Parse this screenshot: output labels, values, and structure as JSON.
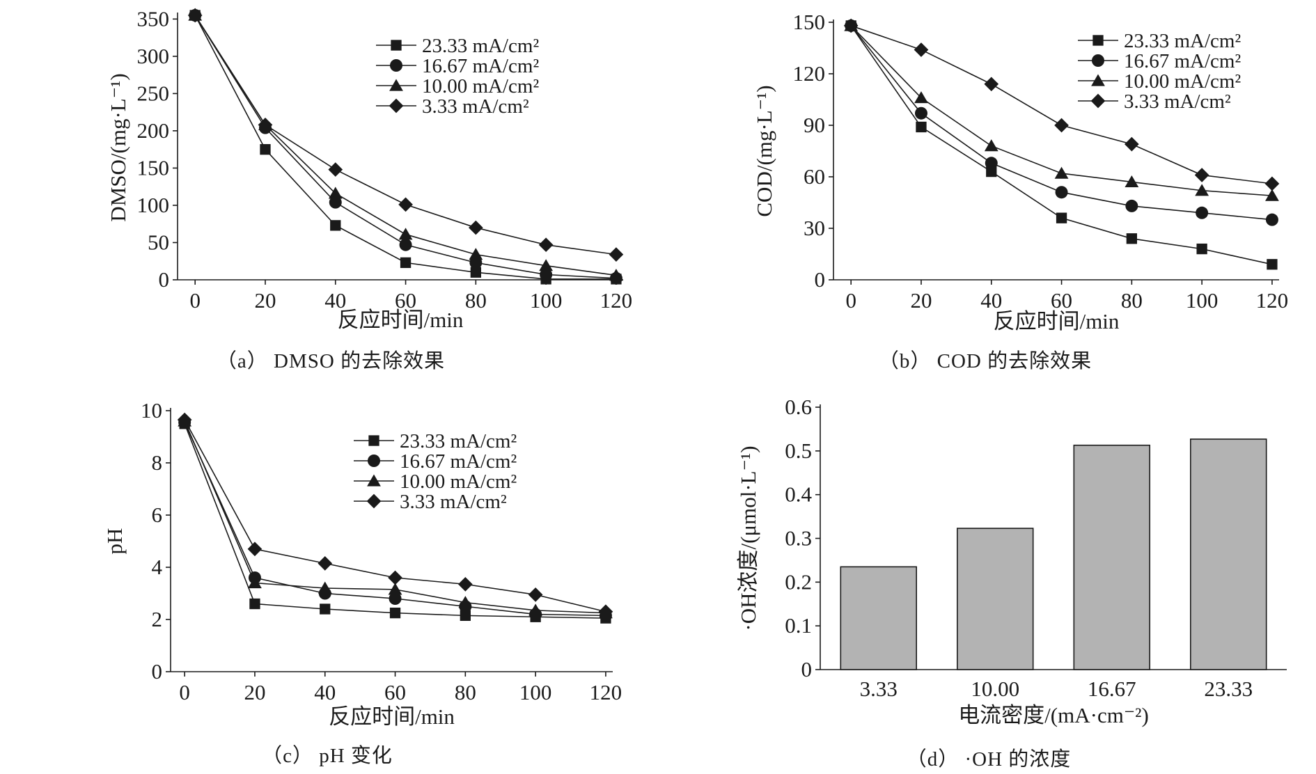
{
  "chart_data": [
    {
      "id": "a",
      "type": "line",
      "caption": "（a） DMSO 的去除效果",
      "xlabel": "反应时间/min",
      "ylabel": "DMSO/(mg·L⁻¹)",
      "x": [
        0,
        20,
        40,
        60,
        80,
        100,
        120
      ],
      "xticks": [
        "0",
        "20",
        "40",
        "60",
        "80",
        "100",
        "120"
      ],
      "yticks": [
        "0",
        "50",
        "100",
        "150",
        "200",
        "250",
        "300",
        "350"
      ],
      "xlim": [
        -5,
        122
      ],
      "ylim": [
        0,
        355
      ],
      "legend_position": "top-right",
      "series": [
        {
          "name": "23.33 mA/cm²",
          "marker": "square",
          "values": [
            355,
            175,
            73,
            23,
            10,
            1,
            1
          ]
        },
        {
          "name": "16.67 mA/cm²",
          "marker": "circle",
          "values": [
            355,
            204,
            104,
            47,
            23,
            7,
            2
          ]
        },
        {
          "name": "10.00 mA/cm²",
          "marker": "triangle",
          "values": [
            355,
            208,
            116,
            61,
            34,
            19,
            6
          ]
        },
        {
          "name": "3.33 mA/cm²",
          "marker": "diamond",
          "values": [
            355,
            208,
            148,
            101,
            70,
            47,
            34
          ]
        }
      ]
    },
    {
      "id": "b",
      "type": "line",
      "caption": "（b） COD 的去除效果",
      "xlabel": "反应时间/min",
      "ylabel": "COD/(mg·L⁻¹)",
      "x": [
        0,
        20,
        40,
        60,
        80,
        100,
        120
      ],
      "xticks": [
        "0",
        "20",
        "40",
        "60",
        "80",
        "100",
        "120"
      ],
      "yticks": [
        "0",
        "30",
        "60",
        "90",
        "120",
        "150"
      ],
      "xlim": [
        -5,
        122
      ],
      "ylim": [
        0,
        150
      ],
      "legend_position": "top-right",
      "series": [
        {
          "name": "23.33 mA/cm²",
          "marker": "square",
          "values": [
            148,
            89,
            63,
            36,
            24,
            18,
            9
          ]
        },
        {
          "name": "16.67 mA/cm²",
          "marker": "circle",
          "values": [
            148,
            97,
            68,
            51,
            43,
            39,
            35
          ]
        },
        {
          "name": "10.00 mA/cm²",
          "marker": "triangle",
          "values": [
            148,
            106,
            78,
            62,
            57,
            52,
            49
          ]
        },
        {
          "name": "3.33 mA/cm²",
          "marker": "diamond",
          "values": [
            148,
            134,
            114,
            90,
            79,
            61,
            56
          ]
        }
      ]
    },
    {
      "id": "c",
      "type": "line",
      "caption": "（c） pH 变化",
      "xlabel": "反应时间/min",
      "ylabel": "pH",
      "x": [
        0,
        20,
        40,
        60,
        80,
        100,
        120
      ],
      "xticks": [
        "0",
        "20",
        "40",
        "60",
        "80",
        "100",
        "120"
      ],
      "yticks": [
        "0",
        "2",
        "4",
        "6",
        "8",
        "10"
      ],
      "xlim": [
        -4,
        122
      ],
      "ylim": [
        0,
        10
      ],
      "legend_position": "top-right",
      "series": [
        {
          "name": "23.33 mA/cm²",
          "marker": "square",
          "values": [
            9.5,
            2.6,
            2.4,
            2.25,
            2.15,
            2.1,
            2.05
          ]
        },
        {
          "name": "16.67 mA/cm²",
          "marker": "circle",
          "values": [
            9.55,
            3.6,
            3.0,
            2.8,
            2.5,
            2.2,
            2.15
          ]
        },
        {
          "name": "10.00 mA/cm²",
          "marker": "triangle",
          "values": [
            9.6,
            3.4,
            3.2,
            3.15,
            2.65,
            2.35,
            2.25
          ]
        },
        {
          "name": "3.33 mA/cm²",
          "marker": "diamond",
          "values": [
            9.65,
            4.7,
            4.15,
            3.6,
            3.35,
            2.95,
            2.3
          ]
        }
      ]
    },
    {
      "id": "d",
      "type": "bar",
      "caption": "（d） ·OH 的浓度",
      "xlabel": "电流密度/(mA·cm⁻²)",
      "ylabel": "·OH浓度/(μmol·L⁻¹)",
      "categories": [
        "3.33",
        "10.00",
        "16.67",
        "23.33"
      ],
      "values": [
        0.235,
        0.323,
        0.513,
        0.527
      ],
      "yticks": [
        "0",
        "0.1",
        "0.2",
        "0.3",
        "0.4",
        "0.5",
        "0.6"
      ],
      "ylim": [
        0,
        0.6
      ],
      "bar_color": "#b3b3b3"
    }
  ]
}
